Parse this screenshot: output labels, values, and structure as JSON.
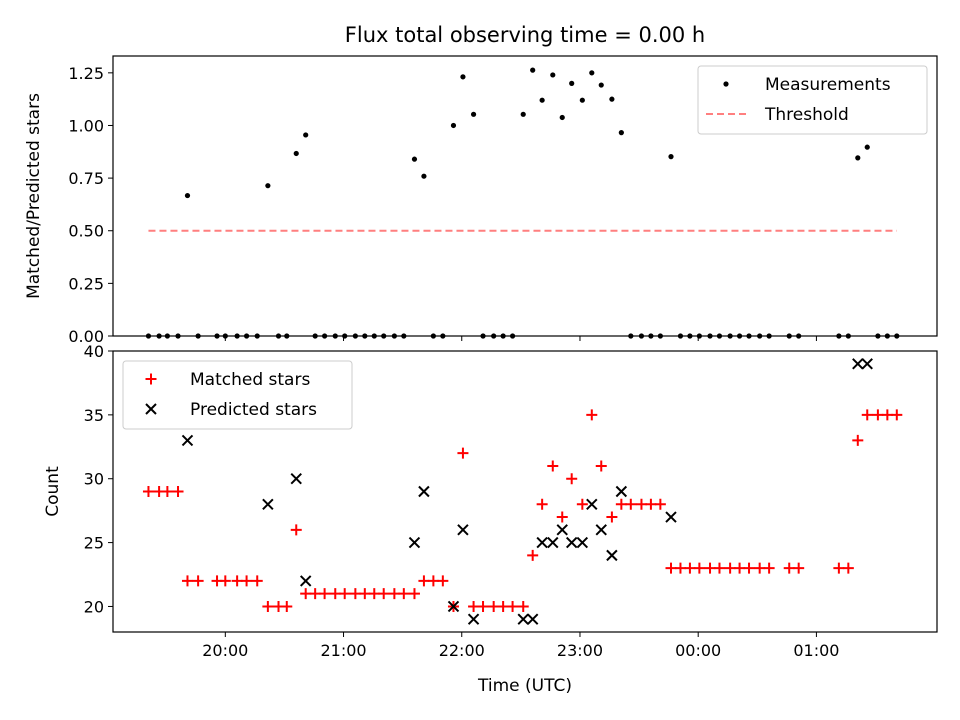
{
  "title": "Flux total observing time = 0.00 h",
  "x_axis": {
    "label": "Time (UTC)",
    "ticks": [
      {
        "value": 20,
        "label": "20:00"
      },
      {
        "value": 21,
        "label": "21:00"
      },
      {
        "value": 22,
        "label": "22:00"
      },
      {
        "value": 23,
        "label": "23:00"
      },
      {
        "value": 24,
        "label": "00:00"
      },
      {
        "value": 25,
        "label": "01:00"
      }
    ]
  },
  "chart_data": [
    {
      "type": "scatter",
      "ylabel": "Matched/Predicted stars",
      "ylim": [
        0,
        1.33
      ],
      "yticks": [
        "0.00",
        "0.25",
        "0.50",
        "0.75",
        "1.00",
        "1.25"
      ],
      "legend_position": "top-right",
      "series": [
        {
          "name": "Measurements",
          "marker": "dot",
          "color": "#000000",
          "points": [
            [
              19.35,
              0
            ],
            [
              19.44,
              0
            ],
            [
              19.51,
              0
            ],
            [
              19.6,
              0
            ],
            [
              19.68,
              0.667
            ],
            [
              19.77,
              0
            ],
            [
              19.93,
              0
            ],
            [
              20.0,
              0
            ],
            [
              20.1,
              0
            ],
            [
              20.18,
              0
            ],
            [
              20.27,
              0
            ],
            [
              20.36,
              0.714
            ],
            [
              20.45,
              0
            ],
            [
              20.52,
              0
            ],
            [
              20.6,
              0.867
            ],
            [
              20.68,
              0.955
            ],
            [
              20.76,
              0
            ],
            [
              20.84,
              0
            ],
            [
              20.93,
              0
            ],
            [
              21.01,
              0
            ],
            [
              21.1,
              0
            ],
            [
              21.18,
              0
            ],
            [
              21.26,
              0
            ],
            [
              21.34,
              0
            ],
            [
              21.43,
              0
            ],
            [
              21.51,
              0
            ],
            [
              21.6,
              0.84
            ],
            [
              21.68,
              0.759
            ],
            [
              21.76,
              0
            ],
            [
              21.84,
              0
            ],
            [
              21.93,
              1.0
            ],
            [
              22.01,
              1.231
            ],
            [
              22.1,
              1.053
            ],
            [
              22.18,
              0
            ],
            [
              22.27,
              0
            ],
            [
              22.35,
              0
            ],
            [
              22.43,
              0
            ],
            [
              22.52,
              1.053
            ],
            [
              22.6,
              1.263
            ],
            [
              22.68,
              1.12
            ],
            [
              22.77,
              1.24
            ],
            [
              22.85,
              1.038
            ],
            [
              22.93,
              1.2
            ],
            [
              23.02,
              1.12
            ],
            [
              23.1,
              1.25
            ],
            [
              23.18,
              1.192
            ],
            [
              23.27,
              1.125
            ],
            [
              23.35,
              0.966
            ],
            [
              23.43,
              0
            ],
            [
              23.52,
              0
            ],
            [
              23.6,
              0
            ],
            [
              23.68,
              0
            ],
            [
              23.77,
              0.852
            ],
            [
              23.85,
              0
            ],
            [
              23.93,
              0
            ],
            [
              24.01,
              0
            ],
            [
              24.1,
              0
            ],
            [
              24.18,
              0
            ],
            [
              24.27,
              0
            ],
            [
              24.35,
              0
            ],
            [
              24.43,
              0
            ],
            [
              24.52,
              0
            ],
            [
              24.6,
              0
            ],
            [
              24.77,
              0
            ],
            [
              24.85,
              0
            ],
            [
              25.19,
              0
            ],
            [
              25.27,
              0
            ],
            [
              25.35,
              0.846
            ],
            [
              25.43,
              0.897
            ],
            [
              25.52,
              0
            ],
            [
              25.6,
              0
            ],
            [
              25.68,
              0
            ]
          ]
        },
        {
          "name": "Threshold",
          "style": "dashed",
          "color": "#ff7f7f",
          "points": [
            [
              19.35,
              0.5
            ],
            [
              25.68,
              0.5
            ]
          ]
        }
      ]
    },
    {
      "type": "scatter",
      "ylabel": "Count",
      "ylim": [
        18,
        40
      ],
      "yticks": [
        "20",
        "25",
        "30",
        "35",
        "40"
      ],
      "legend_position": "top-left",
      "series": [
        {
          "name": "Matched stars",
          "marker": "plus",
          "color": "#ff0000",
          "points": [
            [
              19.35,
              29
            ],
            [
              19.44,
              29
            ],
            [
              19.51,
              29
            ],
            [
              19.6,
              29
            ],
            [
              19.68,
              22
            ],
            [
              19.77,
              22
            ],
            [
              19.93,
              22
            ],
            [
              20.0,
              22
            ],
            [
              20.1,
              22
            ],
            [
              20.18,
              22
            ],
            [
              20.27,
              22
            ],
            [
              20.36,
              20
            ],
            [
              20.45,
              20
            ],
            [
              20.52,
              20
            ],
            [
              20.6,
              26
            ],
            [
              20.68,
              21
            ],
            [
              20.76,
              21
            ],
            [
              20.84,
              21
            ],
            [
              20.93,
              21
            ],
            [
              21.01,
              21
            ],
            [
              21.1,
              21
            ],
            [
              21.18,
              21
            ],
            [
              21.26,
              21
            ],
            [
              21.34,
              21
            ],
            [
              21.43,
              21
            ],
            [
              21.51,
              21
            ],
            [
              21.6,
              21
            ],
            [
              21.68,
              22
            ],
            [
              21.76,
              22
            ],
            [
              21.84,
              22
            ],
            [
              21.93,
              20
            ],
            [
              22.01,
              32
            ],
            [
              22.1,
              20
            ],
            [
              22.18,
              20
            ],
            [
              22.27,
              20
            ],
            [
              22.35,
              20
            ],
            [
              22.43,
              20
            ],
            [
              22.52,
              20
            ],
            [
              22.6,
              24
            ],
            [
              22.68,
              28
            ],
            [
              22.77,
              31
            ],
            [
              22.85,
              27
            ],
            [
              22.93,
              30
            ],
            [
              23.02,
              28
            ],
            [
              23.1,
              35
            ],
            [
              23.18,
              31
            ],
            [
              23.27,
              27
            ],
            [
              23.35,
              28
            ],
            [
              23.43,
              28
            ],
            [
              23.52,
              28
            ],
            [
              23.6,
              28
            ],
            [
              23.68,
              28
            ],
            [
              23.77,
              23
            ],
            [
              23.85,
              23
            ],
            [
              23.93,
              23
            ],
            [
              24.01,
              23
            ],
            [
              24.1,
              23
            ],
            [
              24.18,
              23
            ],
            [
              24.27,
              23
            ],
            [
              24.35,
              23
            ],
            [
              24.43,
              23
            ],
            [
              24.52,
              23
            ],
            [
              24.6,
              23
            ],
            [
              24.77,
              23
            ],
            [
              24.85,
              23
            ],
            [
              25.19,
              23
            ],
            [
              25.27,
              23
            ],
            [
              25.35,
              33
            ],
            [
              25.43,
              35
            ],
            [
              25.52,
              35
            ],
            [
              25.6,
              35
            ],
            [
              25.68,
              35
            ]
          ]
        },
        {
          "name": "Predicted stars",
          "marker": "x",
          "color": "#000000",
          "points": [
            [
              19.68,
              33
            ],
            [
              20.36,
              28
            ],
            [
              20.6,
              30
            ],
            [
              20.68,
              22
            ],
            [
              21.6,
              25
            ],
            [
              21.68,
              29
            ],
            [
              21.93,
              20
            ],
            [
              22.01,
              26
            ],
            [
              22.1,
              19
            ],
            [
              22.52,
              19
            ],
            [
              22.6,
              19
            ],
            [
              22.68,
              25
            ],
            [
              22.77,
              25
            ],
            [
              22.85,
              26
            ],
            [
              22.93,
              25
            ],
            [
              23.02,
              25
            ],
            [
              23.1,
              28
            ],
            [
              23.18,
              26
            ],
            [
              23.27,
              24
            ],
            [
              23.35,
              29
            ],
            [
              23.77,
              27
            ],
            [
              25.35,
              39
            ],
            [
              25.43,
              39
            ]
          ]
        }
      ]
    }
  ]
}
